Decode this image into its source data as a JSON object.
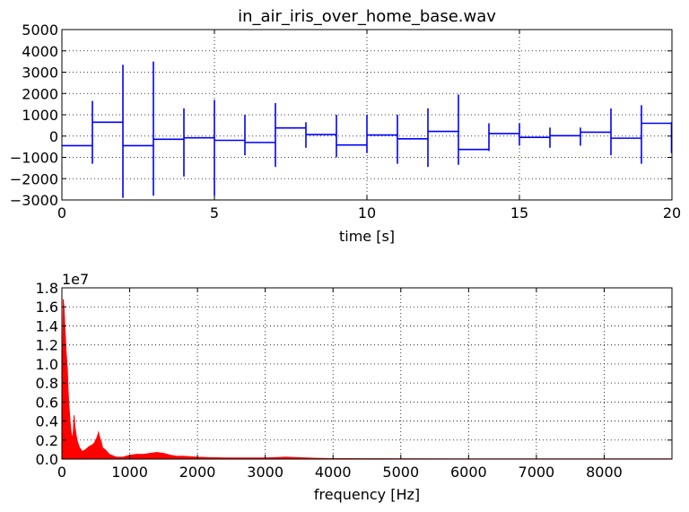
{
  "chart_data": [
    {
      "type": "line",
      "title": "in_air_iris_over_home_base.wav",
      "xlabel": "time [s]",
      "ylabel": "",
      "xlim": [
        0,
        20
      ],
      "ylim": [
        -3000,
        5000
      ],
      "xticks": [
        "0",
        "5",
        "10",
        "15",
        "20"
      ],
      "yticks": [
        "−3000",
        "−2000",
        "−1000",
        "0",
        "1000",
        "2000",
        "3000",
        "4000",
        "5000"
      ],
      "xtick_values": [
        0,
        5,
        10,
        15,
        20
      ],
      "ytick_values": [
        -3000,
        -2000,
        -1000,
        0,
        1000,
        2000,
        3000,
        4000,
        5000
      ],
      "grid": true,
      "color": "#0000ff",
      "segments": [
        {
          "x0": 0,
          "x1": 1,
          "level": -450
        },
        {
          "x0": 1,
          "x1": 2,
          "level": 650
        },
        {
          "x0": 2,
          "x1": 3,
          "level": -450
        },
        {
          "x0": 3,
          "x1": 4,
          "level": -150
        },
        {
          "x0": 4,
          "x1": 5,
          "level": -80
        },
        {
          "x0": 5,
          "x1": 6,
          "level": -200
        },
        {
          "x0": 6,
          "x1": 7,
          "level": -300
        },
        {
          "x0": 7,
          "x1": 8,
          "level": 380
        },
        {
          "x0": 8,
          "x1": 9,
          "level": 70
        },
        {
          "x0": 9,
          "x1": 10,
          "level": -420
        },
        {
          "x0": 10,
          "x1": 11,
          "level": 50
        },
        {
          "x0": 11,
          "x1": 12,
          "level": -130
        },
        {
          "x0": 12,
          "x1": 13,
          "level": 220
        },
        {
          "x0": 13,
          "x1": 14,
          "level": -630
        },
        {
          "x0": 14,
          "x1": 15,
          "level": 120
        },
        {
          "x0": 15,
          "x1": 16,
          "level": -60
        },
        {
          "x0": 16,
          "x1": 17,
          "level": 20
        },
        {
          "x0": 17,
          "x1": 18,
          "level": 180
        },
        {
          "x0": 18,
          "x1": 19,
          "level": -100
        },
        {
          "x0": 19,
          "x1": 20,
          "level": 600
        }
      ],
      "spikes": [
        {
          "x": 1,
          "min": -1300,
          "max": 1650
        },
        {
          "x": 2,
          "min": -2900,
          "max": 3350
        },
        {
          "x": 3,
          "min": -2800,
          "max": 3500
        },
        {
          "x": 4,
          "min": -1900,
          "max": 1300
        },
        {
          "x": 5,
          "min": -2800,
          "max": 1700
        },
        {
          "x": 6,
          "min": -900,
          "max": 1000
        },
        {
          "x": 7,
          "min": -1450,
          "max": 1550
        },
        {
          "x": 8,
          "min": -550,
          "max": 650
        },
        {
          "x": 9,
          "min": -1000,
          "max": 1000
        },
        {
          "x": 10,
          "min": -800,
          "max": 1000
        },
        {
          "x": 11,
          "min": -1300,
          "max": 1000
        },
        {
          "x": 12,
          "min": -1450,
          "max": 1300
        },
        {
          "x": 13,
          "min": -1350,
          "max": 1950
        },
        {
          "x": 14,
          "min": -700,
          "max": 600
        },
        {
          "x": 15,
          "min": -450,
          "max": 600
        },
        {
          "x": 16,
          "min": -550,
          "max": 400
        },
        {
          "x": 17,
          "min": -450,
          "max": 400
        },
        {
          "x": 18,
          "min": -900,
          "max": 1300
        },
        {
          "x": 19,
          "min": -1300,
          "max": 1450
        },
        {
          "x": 20,
          "min": -800,
          "max": 650
        }
      ]
    },
    {
      "type": "area",
      "title": "",
      "xlabel": "frequency [Hz]",
      "ylabel": "",
      "offset_label": "1e7",
      "xlim": [
        0,
        9000
      ],
      "ylim": [
        0,
        1.8
      ],
      "xticks": [
        "0",
        "1000",
        "2000",
        "3000",
        "4000",
        "5000",
        "6000",
        "7000",
        "8000"
      ],
      "yticks": [
        "0.0",
        "0.2",
        "0.4",
        "0.6",
        "0.8",
        "1.0",
        "1.2",
        "1.4",
        "1.6",
        "1.8"
      ],
      "xtick_values": [
        0,
        1000,
        2000,
        3000,
        4000,
        5000,
        6000,
        7000,
        8000
      ],
      "ytick_values": [
        0,
        0.2,
        0.4,
        0.6,
        0.8,
        1.0,
        1.2,
        1.4,
        1.6,
        1.8
      ],
      "grid": true,
      "color": "#ff0000",
      "envelope": {
        "x": [
          0,
          20,
          30,
          40,
          50,
          60,
          70,
          80,
          90,
          100,
          110,
          120,
          130,
          140,
          150,
          160,
          170,
          180,
          190,
          200,
          210,
          230,
          260,
          300,
          350,
          400,
          450,
          480,
          500,
          520,
          540,
          560,
          580,
          600,
          650,
          700,
          800,
          900,
          1000,
          1100,
          1200,
          1300,
          1400,
          1500,
          1600,
          1700,
          1800,
          1900,
          2000,
          2200,
          2500,
          3000,
          3300,
          3500,
          3700,
          4000,
          5000,
          6000,
          7000,
          8000,
          9000
        ],
        "y": [
          0.0,
          1.68,
          1.6,
          1.45,
          1.3,
          1.15,
          1.05,
          0.95,
          0.75,
          0.6,
          0.5,
          0.4,
          0.32,
          0.26,
          0.22,
          0.25,
          0.3,
          0.46,
          0.35,
          0.3,
          0.25,
          0.18,
          0.12,
          0.08,
          0.1,
          0.13,
          0.15,
          0.17,
          0.2,
          0.23,
          0.28,
          0.22,
          0.18,
          0.12,
          0.09,
          0.05,
          0.02,
          0.02,
          0.04,
          0.05,
          0.05,
          0.06,
          0.07,
          0.06,
          0.04,
          0.03,
          0.03,
          0.025,
          0.02,
          0.015,
          0.012,
          0.012,
          0.02,
          0.015,
          0.01,
          0.005,
          0.003,
          0.002,
          0.002,
          0.002,
          0.002
        ]
      }
    }
  ]
}
